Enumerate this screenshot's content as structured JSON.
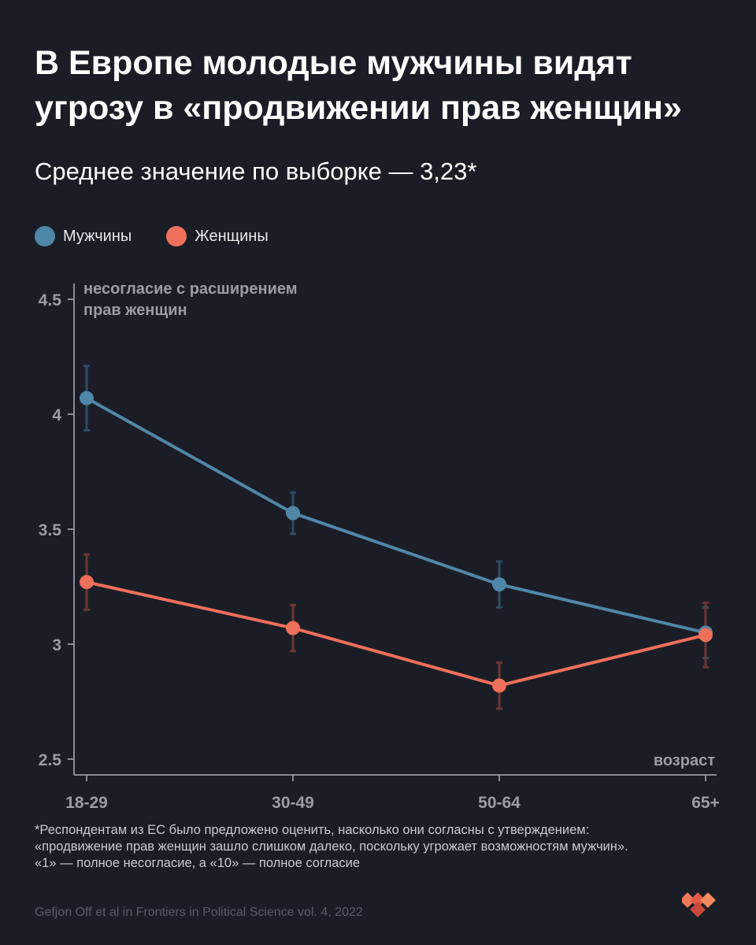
{
  "title": "В Европе молодые мужчины видят угрозу в «продвижении прав женщин»",
  "subtitle": "Среднее значение по выборке — 3,23*",
  "legend": [
    {
      "label": "Мужчины",
      "color": "#4f87a8"
    },
    {
      "label": "Женщины",
      "color": "#ee6f5a"
    }
  ],
  "chart_data": {
    "type": "line",
    "categories": [
      "18-29",
      "30-49",
      "50-64",
      "65+"
    ],
    "ylabel": "несогласие с расширением прав женщин",
    "ylabel_lines": [
      "несогласие с расширением",
      "прав женщин"
    ],
    "xlabel": "возраст",
    "ylim": [
      2.5,
      4.5
    ],
    "yticks": [
      "2.5",
      "3",
      "3.5",
      "4",
      "4.5"
    ],
    "ytick_values": [
      2.5,
      3,
      3.5,
      4,
      4.5
    ],
    "grid": false,
    "legend_position": "top-left",
    "series": [
      {
        "name": "Мужчины",
        "color": "#4f87a8",
        "error_color": "#2f4b60",
        "values": [
          4.07,
          3.57,
          3.26,
          3.05
        ],
        "ci_low": [
          3.93,
          3.48,
          3.16,
          2.94
        ],
        "ci_high": [
          4.21,
          3.66,
          3.36,
          3.16
        ]
      },
      {
        "name": "Женщины",
        "color": "#ee6f5a",
        "error_color": "#6a3833",
        "values": [
          3.27,
          3.07,
          2.82,
          3.04
        ],
        "ci_low": [
          3.15,
          2.97,
          2.72,
          2.9
        ],
        "ci_high": [
          3.39,
          3.17,
          2.92,
          3.18
        ]
      }
    ]
  },
  "footnote": "*Респондентам из ЕС было предложено оценить, насколько они согласны с утверждением: «продвижение прав женщин зашло слишком далеко, поскольку угрожает возможностям мужчин». «1» — полное несогласие, а «10» — полное согласие",
  "source": "Gefjon Off et al in Frontiers in Political Science vol. 4, 2022",
  "logo_icon": "brand-logo-icon",
  "colors": {
    "background": "#1b1d26",
    "axis": "#8a8c96",
    "tick_label": "#9a9ca6"
  }
}
